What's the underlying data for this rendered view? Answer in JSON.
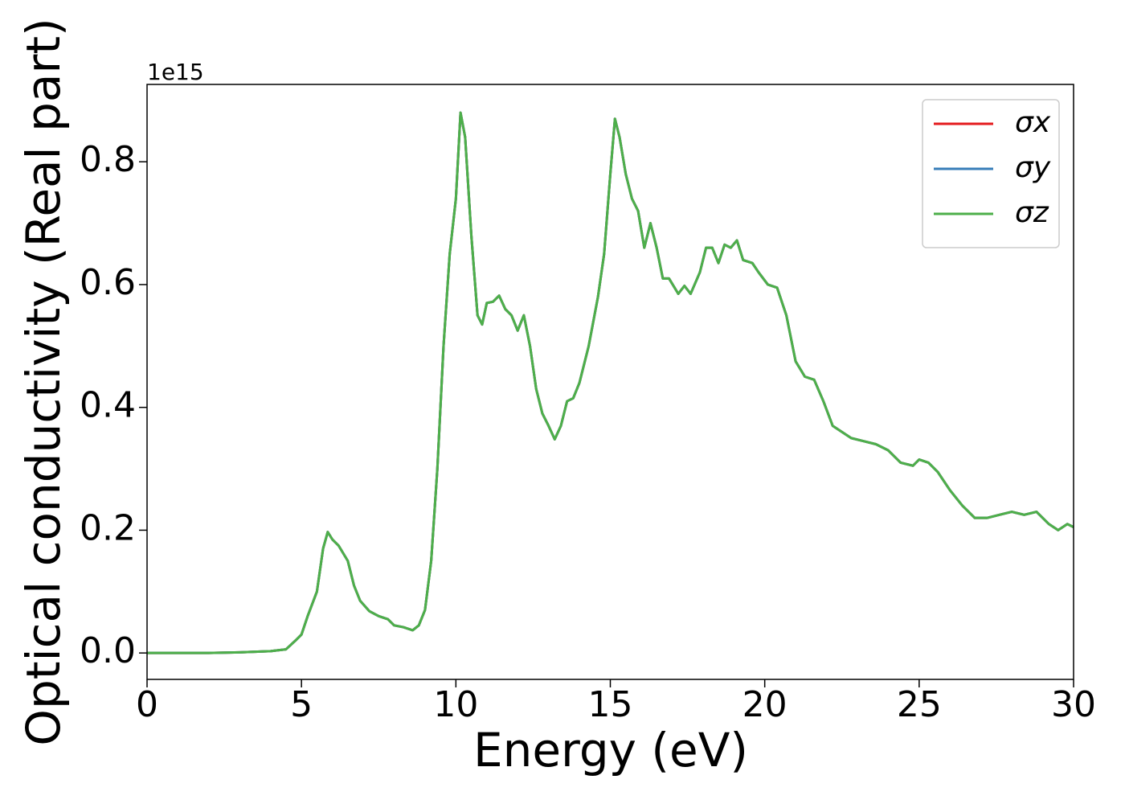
{
  "chart_data": {
    "type": "line",
    "xlabel": "Energy (eV)",
    "ylabel": "Optical conductivity (Real part)",
    "y_offset_label": "1e15",
    "xlim": [
      0,
      30
    ],
    "xticks": [
      0,
      5,
      10,
      15,
      20,
      25,
      30
    ],
    "ylim": [
      -0.043,
      0.926
    ],
    "yticks": [
      {
        "value": 0,
        "label": "0.0"
      },
      {
        "value": 0.2,
        "label": "0.2"
      },
      {
        "value": 0.4,
        "label": "0.4"
      },
      {
        "value": 0.6,
        "label": "0.6"
      },
      {
        "value": 0.8,
        "label": "0.8"
      }
    ],
    "legend": "upper right",
    "x": [
      0,
      2,
      3,
      3.5,
      4,
      4.5,
      4.8,
      5.0,
      5.2,
      5.5,
      5.7,
      5.85,
      6.0,
      6.2,
      6.5,
      6.7,
      6.9,
      7.2,
      7.5,
      7.8,
      8.0,
      8.3,
      8.6,
      8.8,
      9.0,
      9.2,
      9.4,
      9.6,
      9.8,
      10.0,
      10.15,
      10.3,
      10.5,
      10.7,
      10.85,
      11.0,
      11.2,
      11.4,
      11.6,
      11.8,
      12.0,
      12.2,
      12.4,
      12.6,
      12.8,
      13.0,
      13.2,
      13.4,
      13.6,
      13.8,
      14.0,
      14.3,
      14.6,
      14.8,
      15.0,
      15.15,
      15.3,
      15.5,
      15.7,
      15.9,
      16.1,
      16.3,
      16.5,
      16.7,
      16.9,
      17.2,
      17.4,
      17.6,
      17.9,
      18.1,
      18.3,
      18.5,
      18.7,
      18.9,
      19.1,
      19.3,
      19.6,
      19.8,
      20.1,
      20.4,
      20.7,
      21.0,
      21.3,
      21.6,
      21.9,
      22.2,
      22.5,
      22.8,
      23.2,
      23.6,
      24.0,
      24.4,
      24.8,
      25.0,
      25.3,
      25.6,
      26.0,
      26.4,
      26.8,
      27.2,
      27.6,
      28.0,
      28.4,
      28.8,
      29.2,
      29.5,
      29.8,
      30.0
    ],
    "series": [
      {
        "name": "σx",
        "color": "#e41a1c",
        "values": [
          0,
          0,
          0.001,
          0.002,
          0.003,
          0.006,
          0.02,
          0.03,
          0.06,
          0.1,
          0.17,
          0.197,
          0.185,
          0.175,
          0.15,
          0.11,
          0.085,
          0.068,
          0.06,
          0.055,
          0.045,
          0.042,
          0.037,
          0.045,
          0.07,
          0.15,
          0.3,
          0.5,
          0.65,
          0.74,
          0.88,
          0.84,
          0.68,
          0.55,
          0.535,
          0.57,
          0.572,
          0.582,
          0.56,
          0.55,
          0.525,
          0.55,
          0.5,
          0.43,
          0.39,
          0.37,
          0.348,
          0.37,
          0.41,
          0.415,
          0.44,
          0.5,
          0.58,
          0.65,
          0.78,
          0.87,
          0.84,
          0.78,
          0.74,
          0.72,
          0.66,
          0.7,
          0.66,
          0.61,
          0.61,
          0.585,
          0.598,
          0.585,
          0.62,
          0.66,
          0.66,
          0.635,
          0.665,
          0.66,
          0.672,
          0.64,
          0.635,
          0.62,
          0.6,
          0.595,
          0.55,
          0.475,
          0.45,
          0.445,
          0.41,
          0.37,
          0.36,
          0.35,
          0.345,
          0.34,
          0.33,
          0.31,
          0.305,
          0.315,
          0.31,
          0.295,
          0.265,
          0.24,
          0.22,
          0.22,
          0.225,
          0.23,
          0.225,
          0.23,
          0.21,
          0.2,
          0.21,
          0.205
        ]
      },
      {
        "name": "σy",
        "color": "#377eb8",
        "values": [
          0,
          0,
          0.001,
          0.002,
          0.003,
          0.006,
          0.02,
          0.03,
          0.06,
          0.1,
          0.17,
          0.197,
          0.185,
          0.175,
          0.15,
          0.11,
          0.085,
          0.068,
          0.06,
          0.055,
          0.045,
          0.042,
          0.037,
          0.045,
          0.07,
          0.15,
          0.3,
          0.5,
          0.65,
          0.74,
          0.88,
          0.84,
          0.68,
          0.55,
          0.535,
          0.57,
          0.572,
          0.582,
          0.56,
          0.55,
          0.525,
          0.55,
          0.5,
          0.43,
          0.39,
          0.37,
          0.348,
          0.37,
          0.41,
          0.415,
          0.44,
          0.5,
          0.58,
          0.65,
          0.78,
          0.87,
          0.84,
          0.78,
          0.74,
          0.72,
          0.66,
          0.7,
          0.66,
          0.61,
          0.61,
          0.585,
          0.598,
          0.585,
          0.62,
          0.66,
          0.66,
          0.635,
          0.665,
          0.66,
          0.672,
          0.64,
          0.635,
          0.62,
          0.6,
          0.595,
          0.55,
          0.475,
          0.45,
          0.445,
          0.41,
          0.37,
          0.36,
          0.35,
          0.345,
          0.34,
          0.33,
          0.31,
          0.305,
          0.315,
          0.31,
          0.295,
          0.265,
          0.24,
          0.22,
          0.22,
          0.225,
          0.23,
          0.225,
          0.23,
          0.21,
          0.2,
          0.21,
          0.205
        ]
      },
      {
        "name": "σz",
        "color": "#4daf4a",
        "values": [
          0,
          0,
          0.001,
          0.002,
          0.003,
          0.006,
          0.02,
          0.03,
          0.06,
          0.1,
          0.17,
          0.197,
          0.185,
          0.175,
          0.15,
          0.11,
          0.085,
          0.068,
          0.06,
          0.055,
          0.045,
          0.042,
          0.037,
          0.045,
          0.07,
          0.15,
          0.3,
          0.5,
          0.65,
          0.74,
          0.88,
          0.84,
          0.68,
          0.55,
          0.535,
          0.57,
          0.572,
          0.582,
          0.56,
          0.55,
          0.525,
          0.55,
          0.5,
          0.43,
          0.39,
          0.37,
          0.348,
          0.37,
          0.41,
          0.415,
          0.44,
          0.5,
          0.58,
          0.65,
          0.78,
          0.87,
          0.84,
          0.78,
          0.74,
          0.72,
          0.66,
          0.7,
          0.66,
          0.61,
          0.61,
          0.585,
          0.598,
          0.585,
          0.62,
          0.66,
          0.66,
          0.635,
          0.665,
          0.66,
          0.672,
          0.64,
          0.635,
          0.62,
          0.6,
          0.595,
          0.55,
          0.475,
          0.45,
          0.445,
          0.41,
          0.37,
          0.36,
          0.35,
          0.345,
          0.34,
          0.33,
          0.31,
          0.305,
          0.315,
          0.31,
          0.295,
          0.265,
          0.24,
          0.22,
          0.22,
          0.225,
          0.23,
          0.225,
          0.23,
          0.21,
          0.2,
          0.21,
          0.205
        ]
      }
    ]
  }
}
